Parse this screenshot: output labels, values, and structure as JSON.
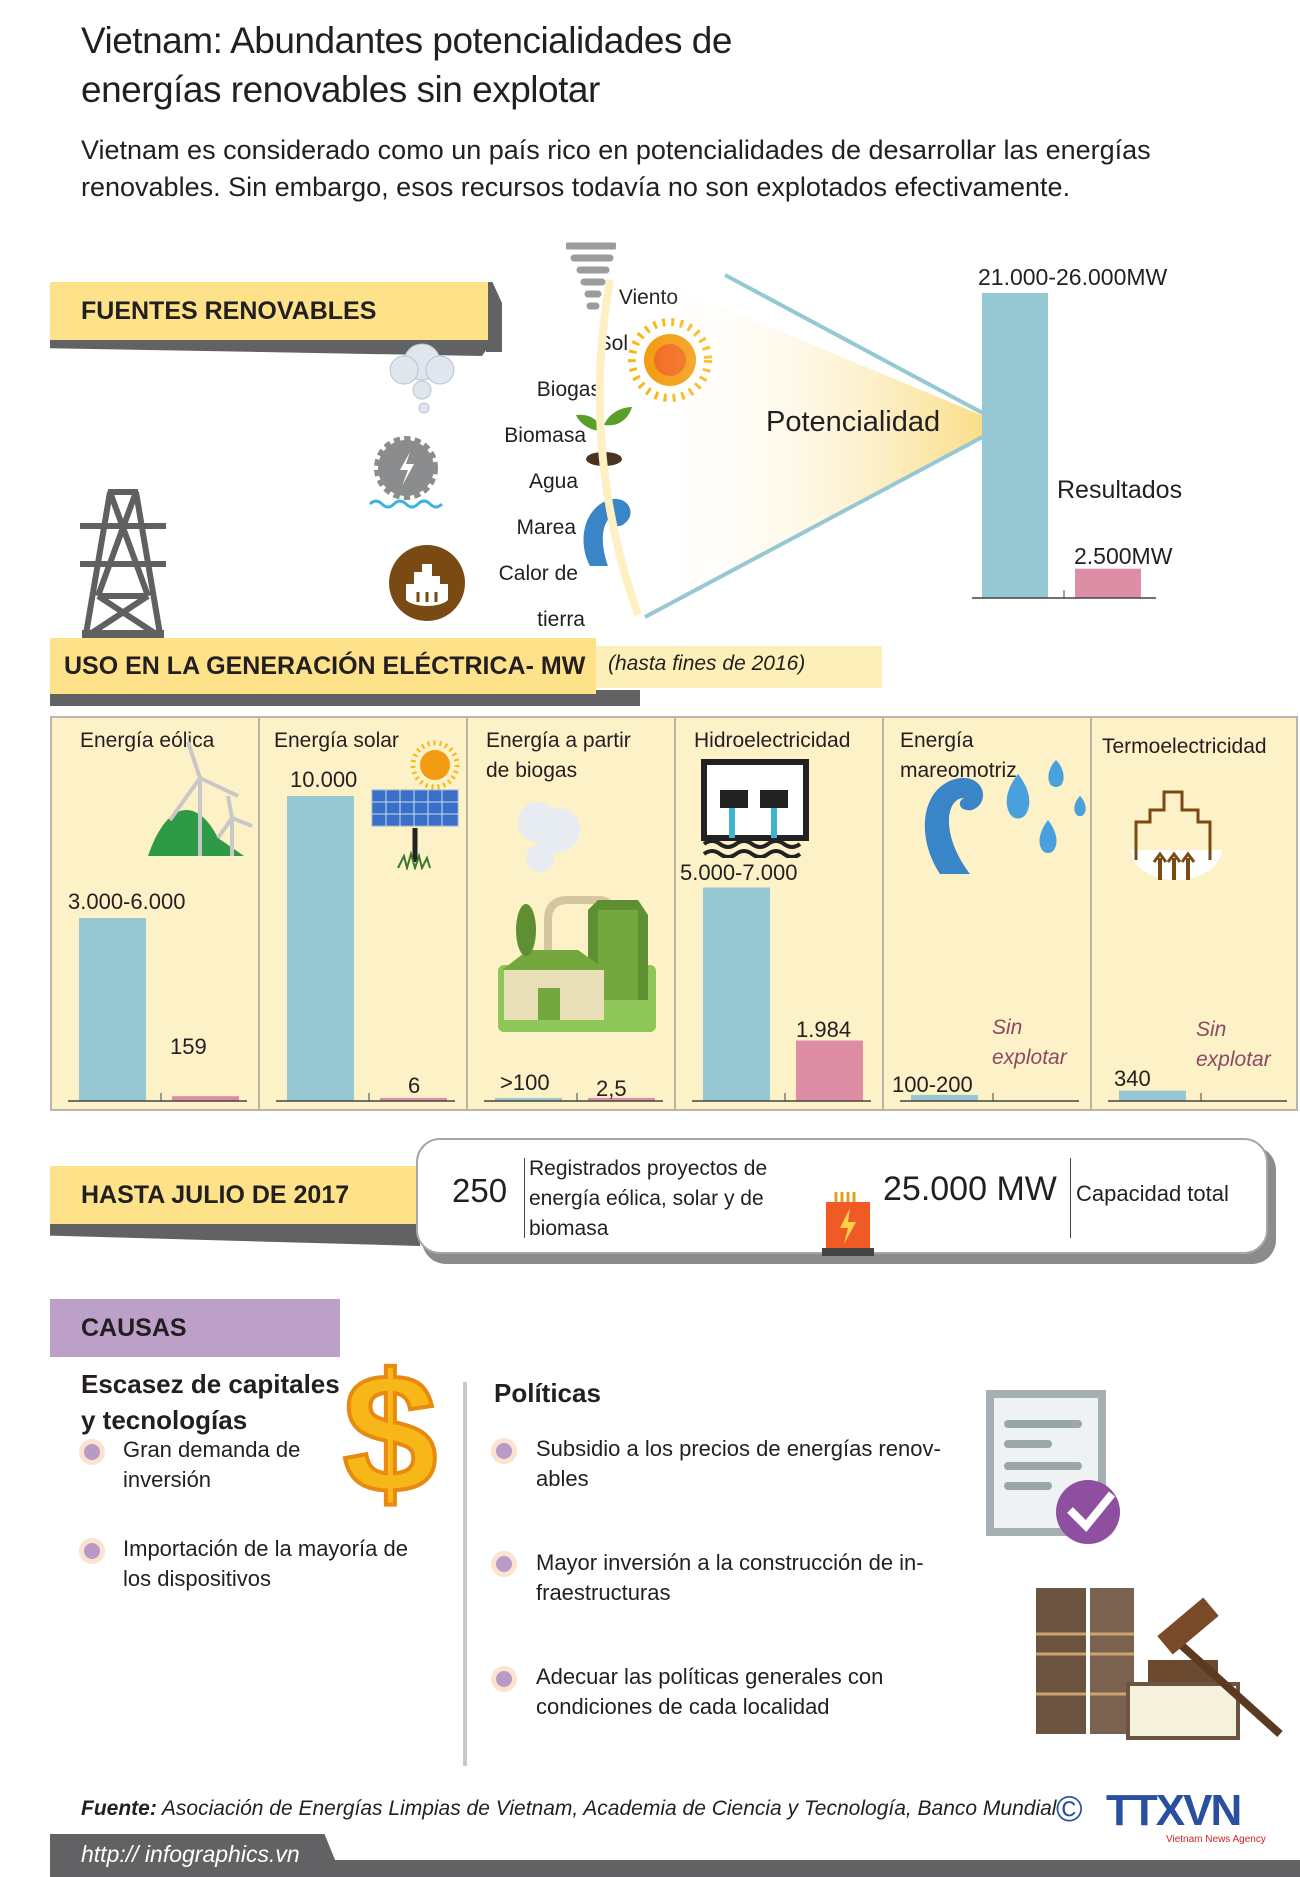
{
  "header": {
    "title": "Vietnam: Abundantes potencialidades de energías renovables sin explotar",
    "subtitle": "Vietnam es considerado como un país rico en potencialidades de desarrollar las energías renovables. Sin embargo, esos recursos todavía no son explotados efectivamente."
  },
  "fuentes": {
    "heading": "FUENTES RENOVABLES",
    "sources": [
      "Viento",
      "Sol",
      "Biogas",
      "Biomasa",
      "Agua",
      "Marea",
      "Calor de",
      "tierra"
    ],
    "potencial_label": "Potencialidad",
    "resultados_label": "Resultados",
    "potencial_value": "21.000-26.000MW",
    "resultado_value": "2.500MW"
  },
  "uso": {
    "heading": "USO EN LA GENERACIÓN ELÉCTRICA- MW",
    "note": "(hasta fines de 2016)",
    "sin_explotar": "Sin explotar",
    "panels": [
      {
        "title": "Energía eólica",
        "potential_label": "3.000-6.000",
        "used_label": "159"
      },
      {
        "title": "Energía solar",
        "potential_label": "10.000",
        "used_label": "6"
      },
      {
        "title": "Energía a partir de biogas",
        "potential_label": ">100",
        "used_label": "2,5"
      },
      {
        "title": "Hidroelectricidad",
        "potential_label": "5.000-7.000",
        "used_label": "1.984"
      },
      {
        "title": "Energía mareomotriz",
        "potential_label": "100-200",
        "used_label": "Sin explotar"
      },
      {
        "title": "Termoelectricidad",
        "potential_label": "340",
        "used_label": "Sin explotar"
      }
    ]
  },
  "chart_data": [
    {
      "type": "bar",
      "categories": [
        "Potencialidad",
        "Resultados"
      ],
      "values": [
        26000,
        2500
      ],
      "value_labels": [
        "21.000-26.000MW",
        "2.500MW"
      ],
      "colors": [
        "#96C8D4",
        "#DE8EA4"
      ]
    },
    {
      "type": "bar",
      "categories": [
        "Energía eólica",
        "Energía solar",
        "Energía a partir de biogas",
        "Hidroelectricidad",
        "Energía mareomotriz",
        "Termoelectricidad"
      ],
      "series": [
        {
          "values": [
            6000,
            10000,
            100,
            7000,
            200,
            340
          ]
        },
        {
          "values": [
            159,
            6,
            2.5,
            1984,
            0,
            0
          ]
        }
      ],
      "colors": [
        "#96C8D4",
        "#DE8EA4"
      ],
      "unit": "MW"
    }
  ],
  "hasta": {
    "heading": "HASTA JULIO DE 2017",
    "projects_count": "250",
    "projects_text": "Registrados proyectos de energía eólica, solar y de biomasa",
    "capacity_value": "25.000 MW",
    "capacity_label": "Capacidad total"
  },
  "causas": {
    "heading": "CAUSAS",
    "left_heading": "Escasez de capitales y tecnologías",
    "left_items": [
      "Gran demanda de inversión",
      "Importación de la mayoría de los dispositivos"
    ],
    "right_heading": "Políticas",
    "right_items": [
      "Subsidio a los precios de energías renov-ables",
      "Mayor inversión a la construcción de in-fraestructuras",
      "Adecuar las políticas generales con condiciones de cada localidad"
    ]
  },
  "footer": {
    "source_label": "Fuente:",
    "source_text": "Asociación de Energías Limpias de Vietnam, Academia de Ciencia y Tecnología, Banco Mundial",
    "url": "http:// infographics.vn",
    "logo_text": "TTXVN",
    "logo_sub": "Vietnam News Agency",
    "copyright": "©"
  },
  "colors": {
    "yellow": "#FDE28A",
    "panel_bg": "#FDF1C7",
    "potential": "#96C8D4",
    "used": "#DE8EA4",
    "causas": "#BDA0C8",
    "gray": "#626264"
  }
}
